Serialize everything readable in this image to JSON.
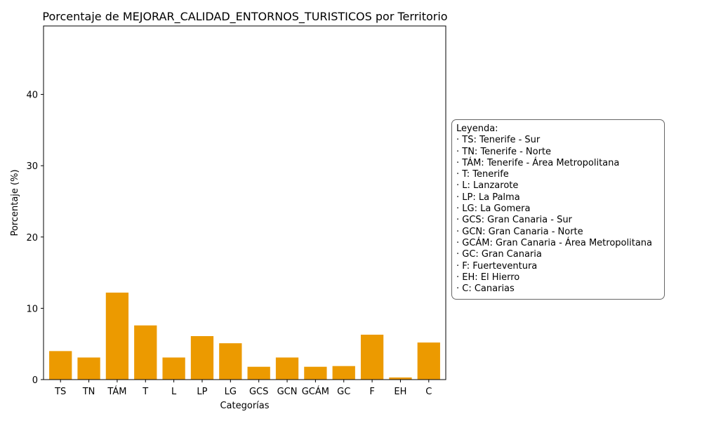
{
  "chart_data": {
    "type": "bar",
    "title": "Porcentaje de MEJORAR_CALIDAD_ENTORNOS_TURISTICOS por Territorio",
    "xlabel": "Categorías",
    "ylabel": "Porcentaje (%)",
    "categories": [
      "TS",
      "TN",
      "TÁM",
      "T",
      "L",
      "LP",
      "LG",
      "GCS",
      "GCN",
      "GCÁM",
      "GC",
      "F",
      "EH",
      "C"
    ],
    "values": [
      4.0,
      3.1,
      12.2,
      7.6,
      3.1,
      6.1,
      5.1,
      1.8,
      3.1,
      1.8,
      1.9,
      6.3,
      0.3,
      5.2
    ],
    "ylim": [
      0,
      49.6
    ],
    "yticks": [
      "0",
      "10",
      "20",
      "30",
      "40"
    ],
    "bar_color": "#ec9a00",
    "grid": false,
    "legend_placement": "right"
  },
  "legend": {
    "title": "Leyenda:",
    "items": [
      "· TS: Tenerife - Sur",
      "· TN: Tenerife - Norte",
      "· TÁM: Tenerife - Área Metropolitana",
      "· T: Tenerife",
      "· L: Lanzarote",
      "· LP: La Palma",
      "· LG: La Gomera",
      "· GCS: Gran Canaria - Sur",
      "· GCN: Gran Canaria - Norte",
      "· GCÁM: Gran Canaria - Área Metropolitana",
      "· GC: Gran Canaria",
      "· F: Fuerteventura",
      "· EH: El Hierro",
      "· C: Canarias"
    ]
  }
}
